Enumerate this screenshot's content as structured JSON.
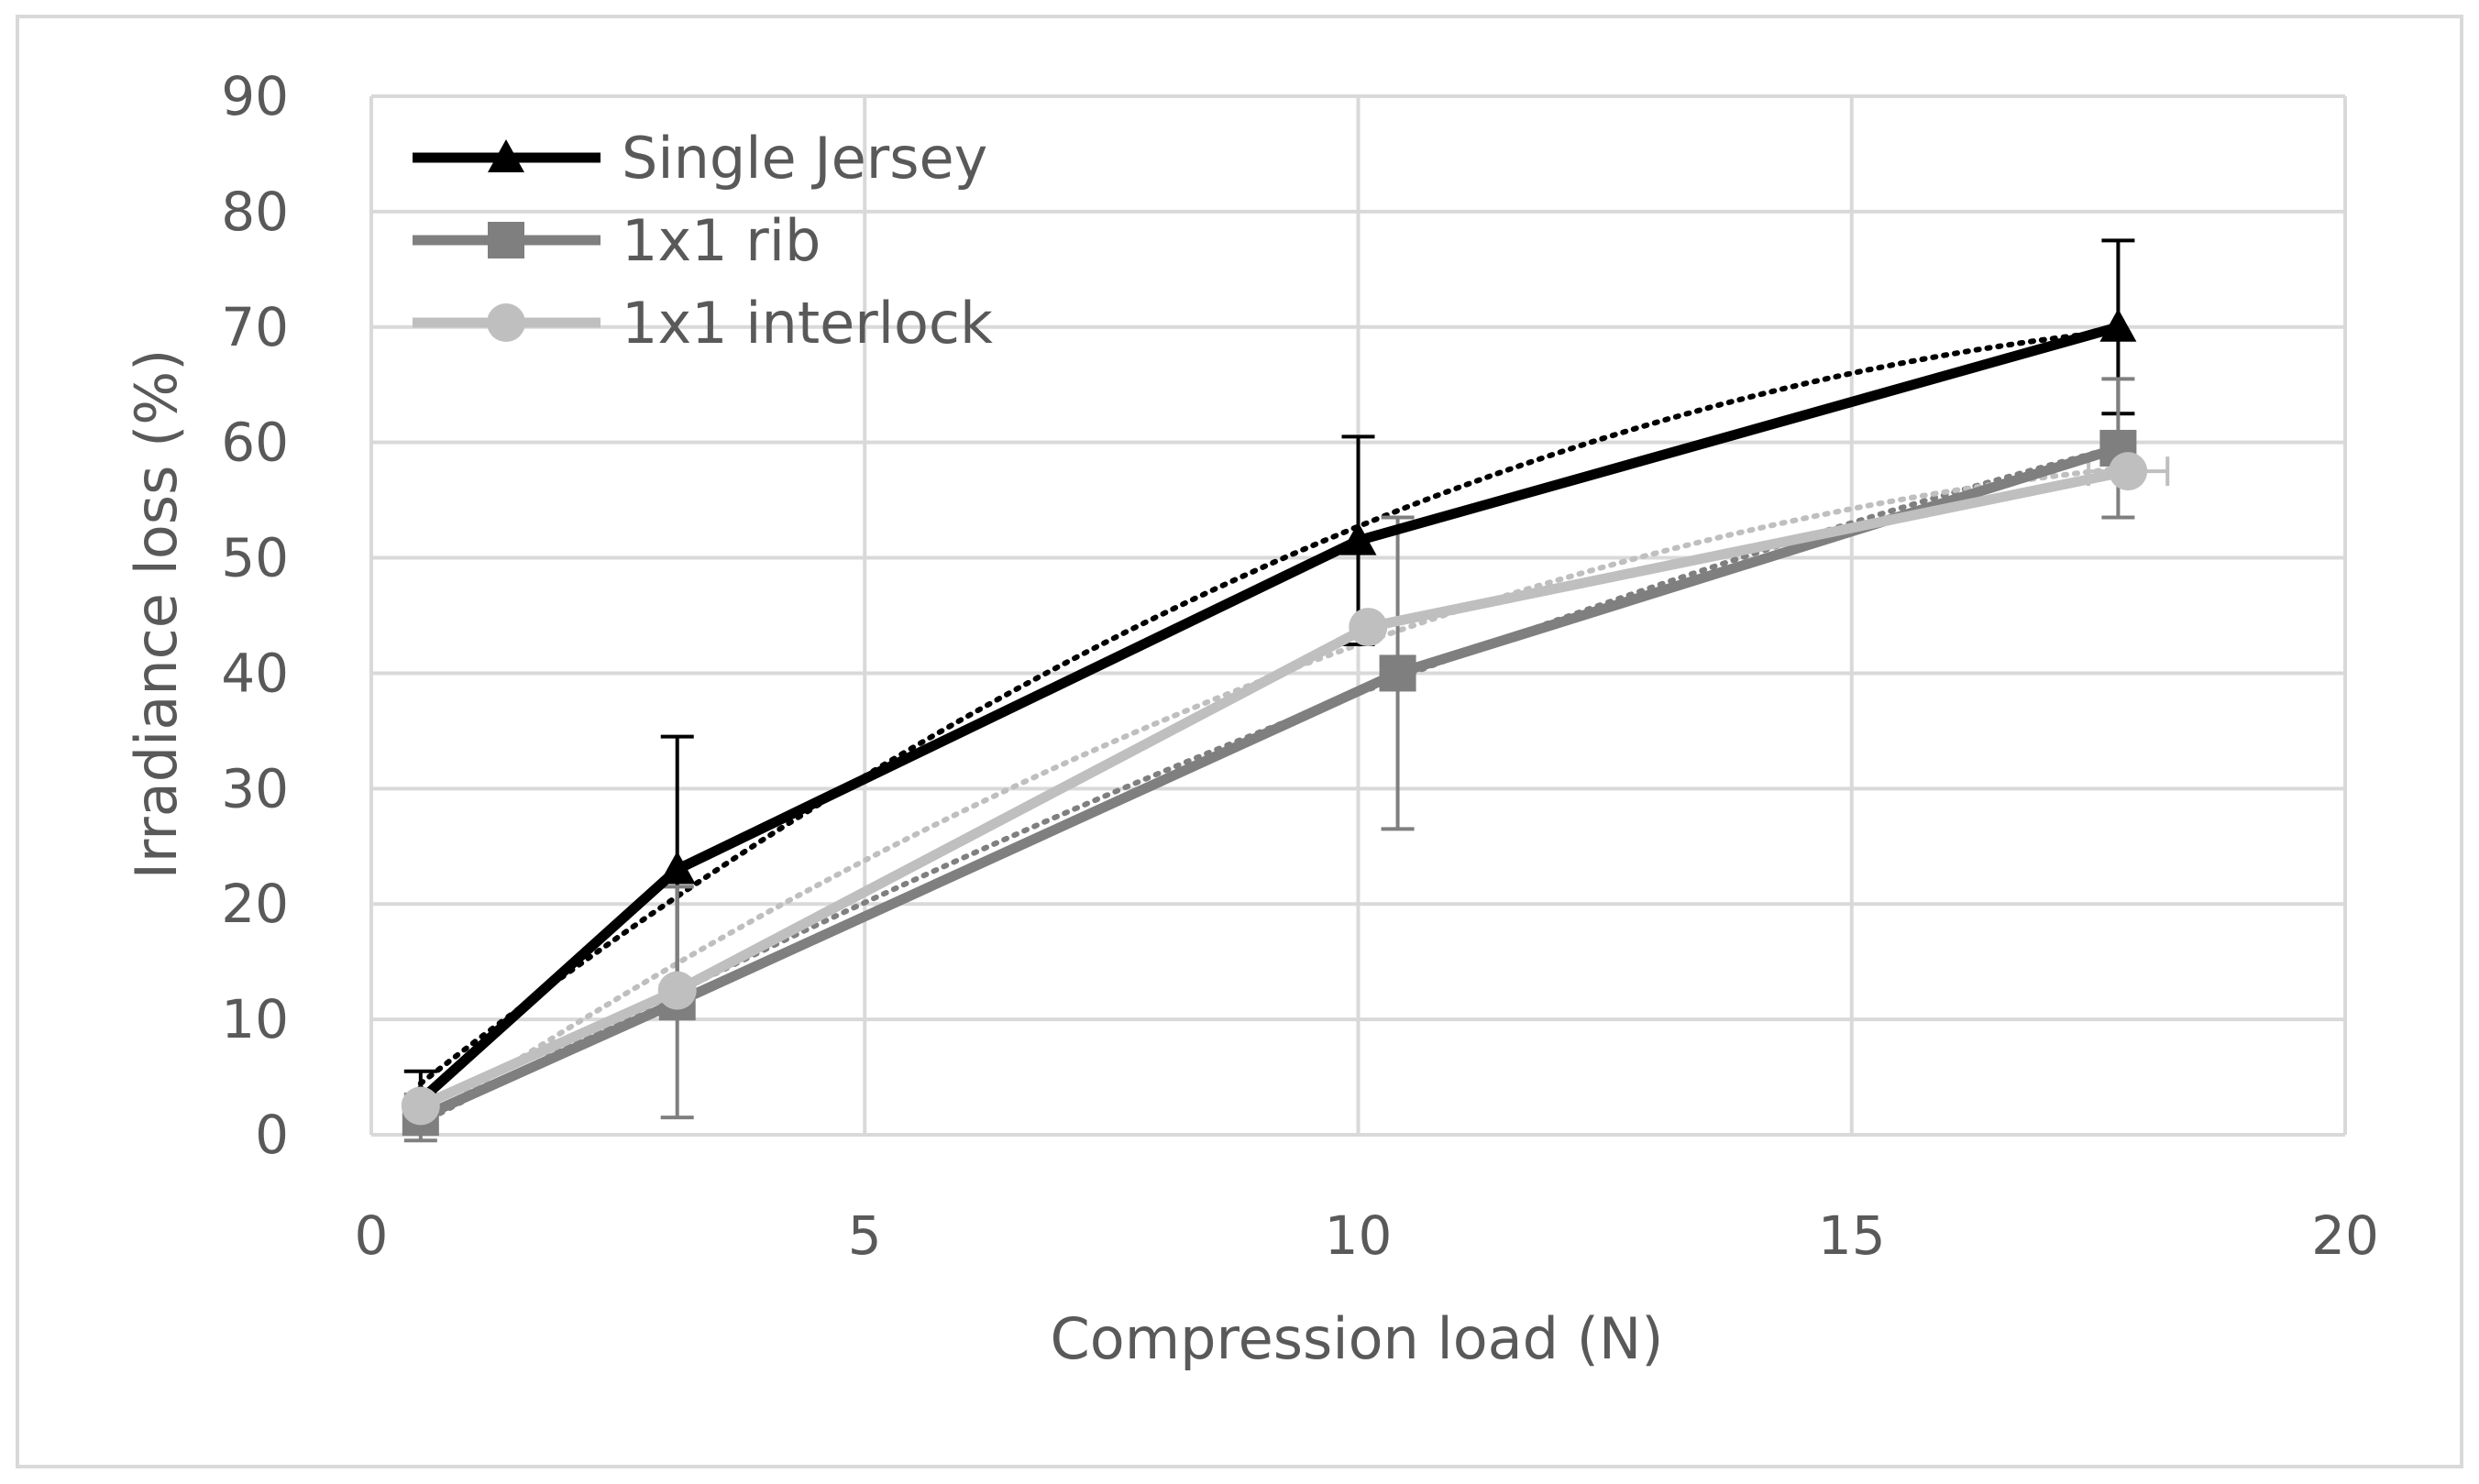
{
  "chart_data": {
    "type": "line",
    "title": "",
    "xlabel": "Compression load (N)",
    "ylabel": "Irradiance loss (%)",
    "xlim": [
      0,
      20
    ],
    "ylim": [
      0,
      90
    ],
    "xticks": [
      0,
      5,
      10,
      15,
      20
    ],
    "yticks": [
      0,
      10,
      20,
      30,
      40,
      50,
      60,
      70,
      80,
      90
    ],
    "grid": true,
    "legend_position": "top-left",
    "series": [
      {
        "name": "Single Jersey",
        "color": "#000000",
        "marker": "triangle",
        "x": [
          0.5,
          3.1,
          10.0,
          17.7
        ],
        "y": [
          3.0,
          23.0,
          51.5,
          70.0
        ],
        "y_error": [
          2.5,
          11.5,
          9.0,
          7.5
        ],
        "x_error": [
          0,
          0,
          0,
          0
        ],
        "trendline": "polynomial"
      },
      {
        "name": "1x1 rib",
        "color": "#7f7f7f",
        "marker": "square",
        "x": [
          0.5,
          3.1,
          10.4,
          17.7
        ],
        "y": [
          1.5,
          11.5,
          40.0,
          59.5
        ],
        "y_error": [
          2.0,
          10.0,
          13.5,
          6.0
        ],
        "x_error": [
          0,
          0,
          0,
          0
        ],
        "trendline": "polynomial"
      },
      {
        "name": "1x1 interlock",
        "color": "#bfbfbf",
        "marker": "circle",
        "x": [
          0.5,
          3.1,
          10.1,
          17.8
        ],
        "y": [
          2.5,
          12.5,
          44.0,
          57.5
        ],
        "y_error": [
          0,
          0,
          0,
          0
        ],
        "x_error": [
          0,
          0,
          0,
          0.4
        ],
        "trendline": "polynomial"
      }
    ]
  }
}
